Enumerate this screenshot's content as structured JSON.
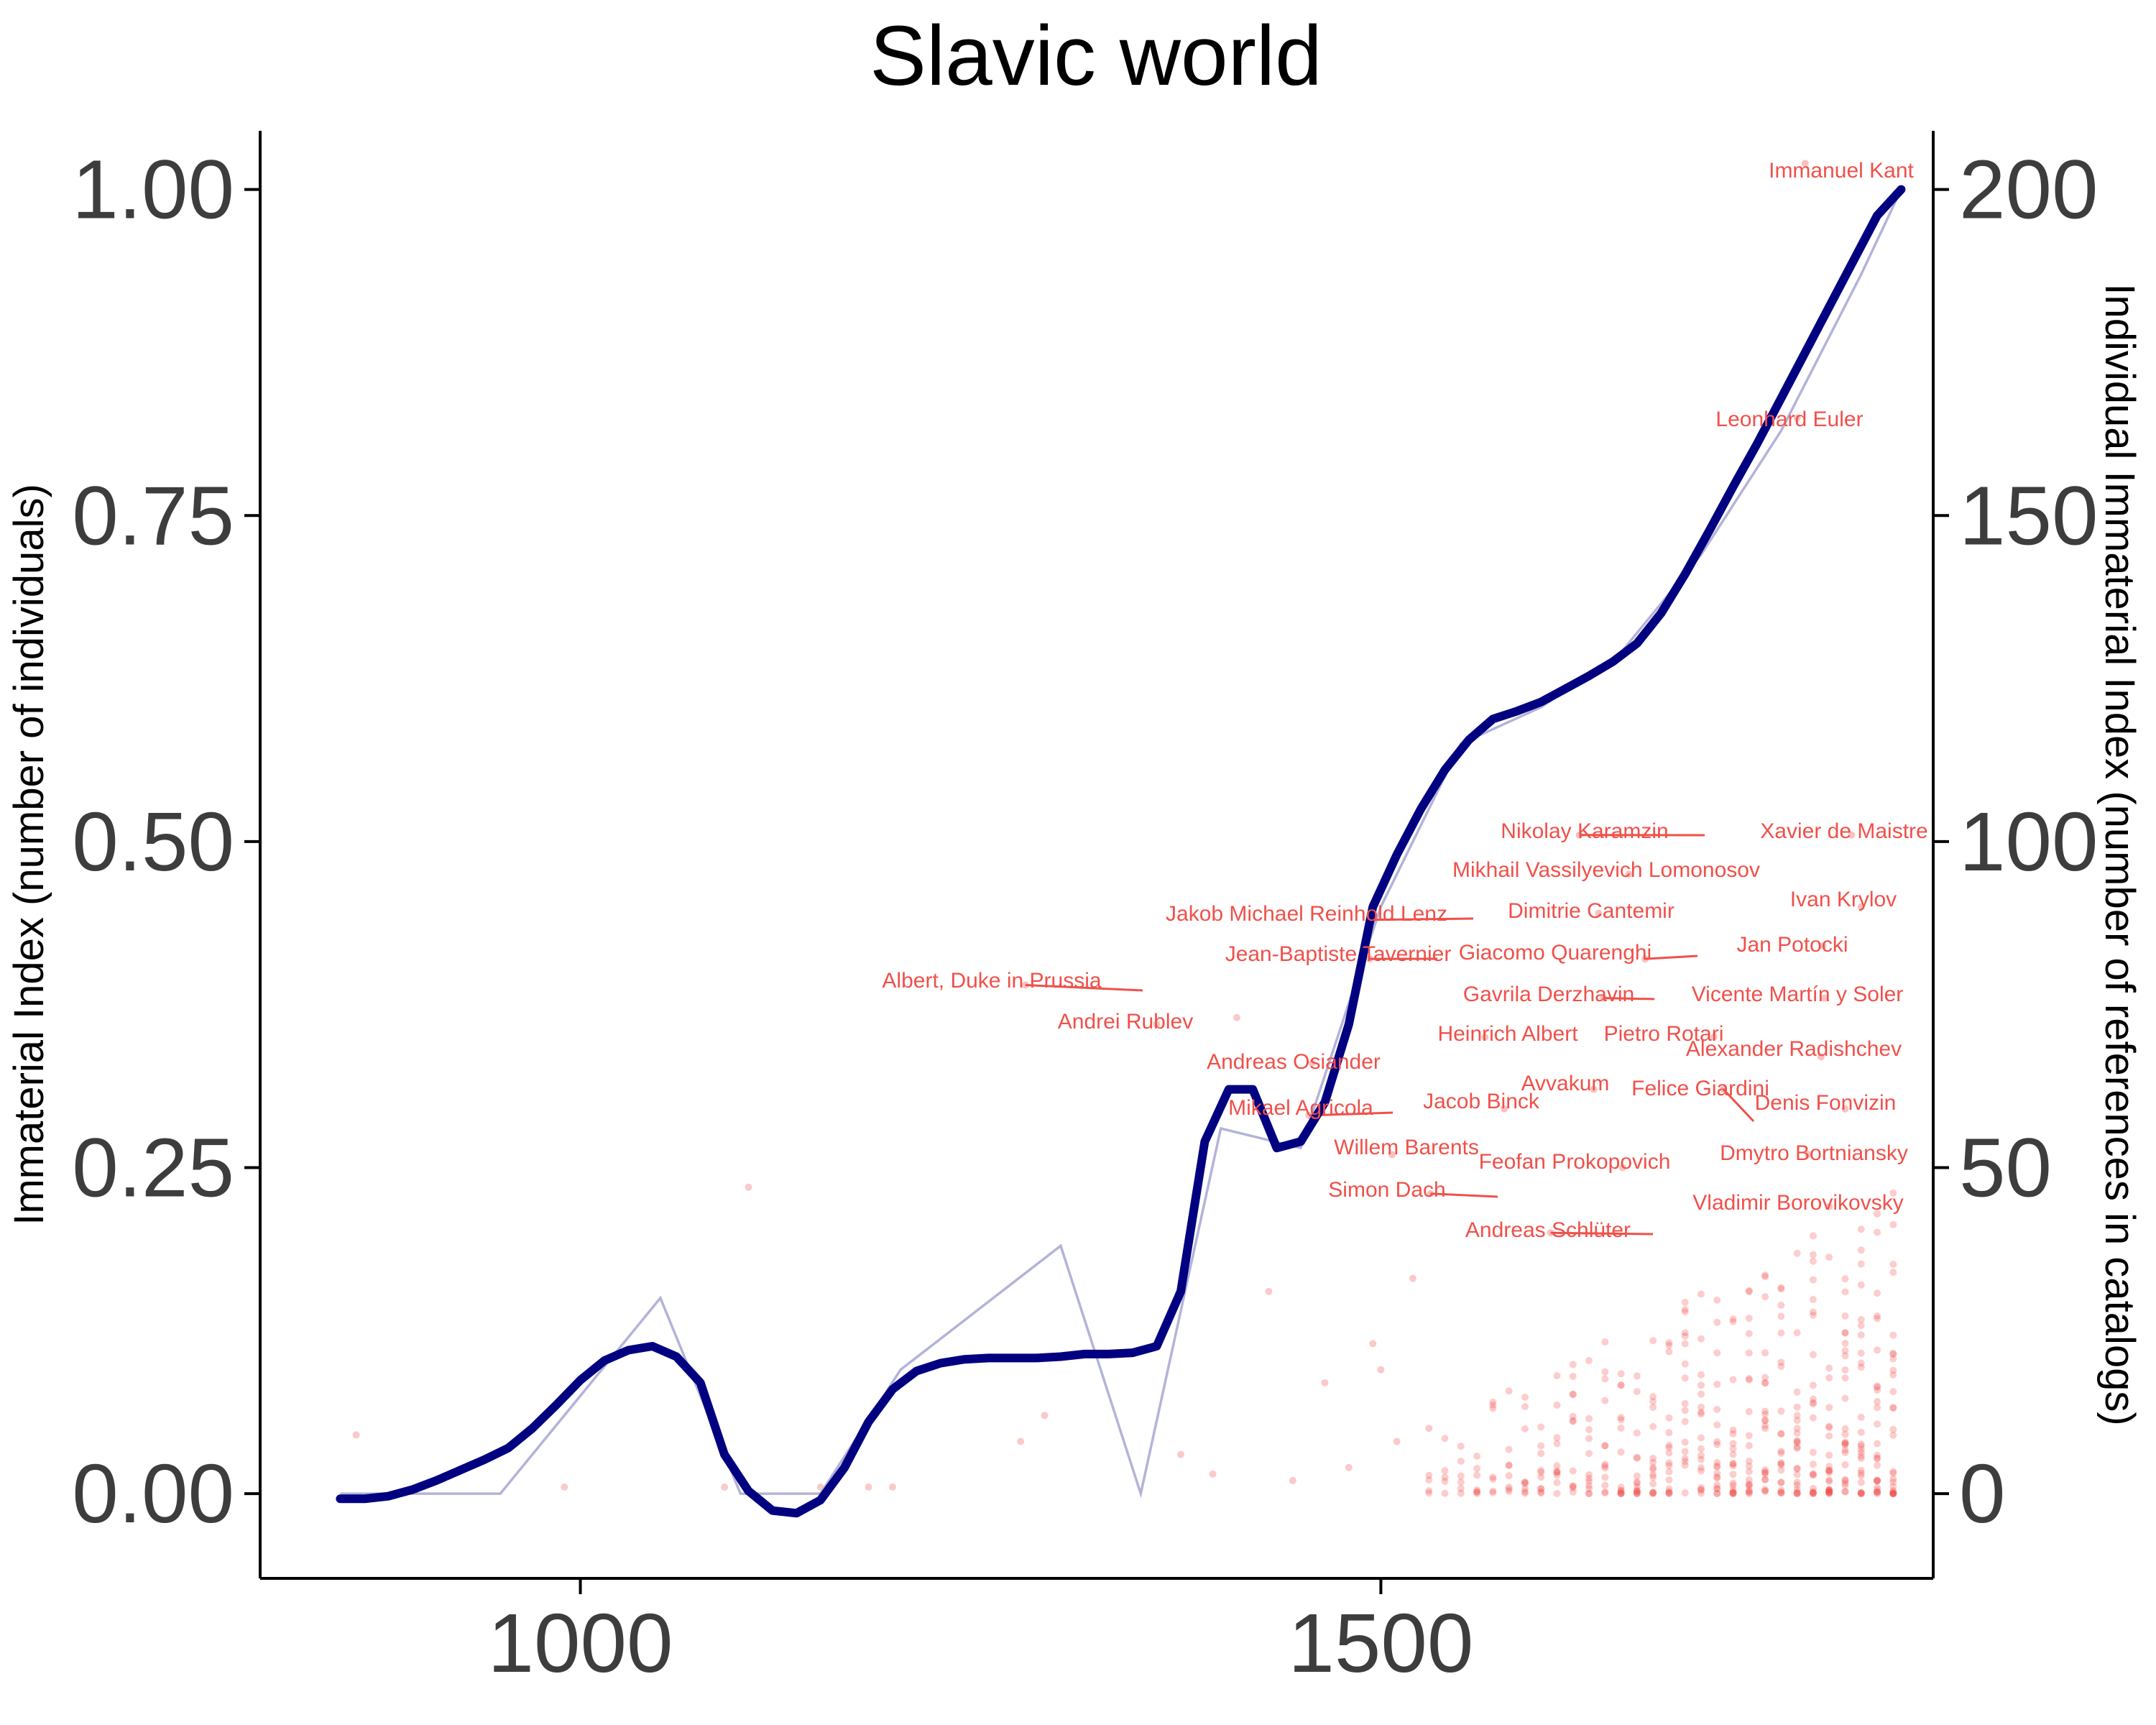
{
  "colors": {
    "index_line": "#000080",
    "raw_line": "#b3b3d9",
    "individuals": "#f0504a"
  },
  "chart_data": {
    "type": "line",
    "title": "Slavic world",
    "xlabel": "",
    "ylabel": "Immaterial Index (number of individuals)",
    "y2label": "Individual Immaterial Index (number of references in catalogs)",
    "xlim": [
      800,
      1845
    ],
    "ylim": [
      -0.065,
      1.045
    ],
    "y2lim": [
      -13,
      209
    ],
    "x_ticks": [
      "1000",
      "1500"
    ],
    "y_ticks": [
      "0.00",
      "0.25",
      "0.50",
      "0.75",
      "1.00"
    ],
    "y2_ticks": [
      "0",
      "50",
      "100",
      "150",
      "200"
    ],
    "grid": false,
    "series": [
      {
        "role": "smoothed",
        "x": [
          850,
          865,
          880,
          895,
          910,
          925,
          940,
          955,
          970,
          985,
          1000,
          1015,
          1030,
          1045,
          1060,
          1075,
          1090,
          1105,
          1120,
          1135,
          1150,
          1165,
          1180,
          1195,
          1210,
          1225,
          1240,
          1255,
          1270,
          1285,
          1300,
          1315,
          1330,
          1345,
          1360,
          1375,
          1390,
          1405,
          1420,
          1435,
          1450,
          1465,
          1480,
          1495,
          1510,
          1525,
          1540,
          1555,
          1570,
          1585,
          1600,
          1615,
          1630,
          1645,
          1660,
          1675,
          1690,
          1705,
          1720,
          1735,
          1750,
          1765,
          1780,
          1795,
          1810,
          1825
        ],
        "y": [
          -0.004,
          -0.004,
          -0.002,
          0.003,
          0.01,
          0.018,
          0.026,
          0.035,
          0.05,
          0.068,
          0.087,
          0.102,
          0.11,
          0.113,
          0.105,
          0.085,
          0.03,
          0.002,
          -0.013,
          -0.015,
          -0.005,
          0.02,
          0.055,
          0.08,
          0.094,
          0.1,
          0.103,
          0.104,
          0.104,
          0.104,
          0.105,
          0.107,
          0.107,
          0.108,
          0.113,
          0.155,
          0.27,
          0.31,
          0.31,
          0.265,
          0.27,
          0.3,
          0.36,
          0.45,
          0.49,
          0.525,
          0.555,
          0.578,
          0.594,
          0.6,
          0.607,
          0.617,
          0.627,
          0.638,
          0.652,
          0.675,
          0.705,
          0.738,
          0.772,
          0.805,
          0.84,
          0.875,
          0.91,
          0.945,
          0.98,
          1.0
        ]
      },
      {
        "role": "raw",
        "x": [
          850,
          950,
          1050,
          1100,
          1150,
          1200,
          1300,
          1350,
          1400,
          1450,
          1500,
          1550,
          1600,
          1650,
          1700,
          1750,
          1800,
          1825
        ],
        "y": [
          0,
          0,
          0.15,
          0,
          0,
          0.095,
          0.19,
          0,
          0.28,
          0.265,
          0.45,
          0.575,
          0.603,
          0.645,
          0.72,
          0.815,
          0.935,
          1.0
        ]
      }
    ],
    "annotations": [
      {
        "text": "Immanuel Kant",
        "x": 1765,
        "y2": 204
      },
      {
        "text": "Leonhard Euler",
        "x": 1760,
        "y2": 165
      },
      {
        "text": "Nikolay Karamzin",
        "x": 1624,
        "y2": 101
      },
      {
        "text": "Xavier de Maistre",
        "x": 1794,
        "y2": 101
      },
      {
        "text": "Mikhail Vassilyevich Lomonosov",
        "x": 1655,
        "y2": 95
      },
      {
        "text": "Ivan Krylov",
        "x": 1800,
        "y2": 90
      },
      {
        "text": "Jakob Michael Reinhold Lenz",
        "x": 1495,
        "y2": 88
      },
      {
        "text": "Dimitrie Cantemir",
        "x": 1636,
        "y2": 89
      },
      {
        "text": "Jan Potocki",
        "x": 1776,
        "y2": 84
      },
      {
        "text": "Jean-Baptiste Tavernier",
        "x": 1493,
        "y2": 82
      },
      {
        "text": "Giacomo Quarenghi",
        "x": 1665,
        "y2": 82
      },
      {
        "text": "Albert, Duke in Prussia",
        "x": 1278,
        "y2": 78
      },
      {
        "text": "Gavrila Derzhavin",
        "x": 1639,
        "y2": 76
      },
      {
        "text": "Vicente Martín y Soler",
        "x": 1777,
        "y2": 76
      },
      {
        "text": "Andrei Rublev",
        "x": 1360,
        "y2": 72
      },
      {
        "text": "Heinrich Albert",
        "x": 1565,
        "y2": 70
      },
      {
        "text": "Pietro Rotari",
        "x": 1708,
        "y2": 70
      },
      {
        "text": "Alexander Radishchev",
        "x": 1775,
        "y2": 67
      },
      {
        "text": "Andreas Osiander",
        "x": 1457,
        "y2": 66
      },
      {
        "text": "Avvakum",
        "x": 1633,
        "y2": 62
      },
      {
        "text": "Felice Giardini",
        "x": 1714,
        "y2": 62
      },
      {
        "text": "Jacob Binck",
        "x": 1577,
        "y2": 59
      },
      {
        "text": "Denis Fonvizin",
        "x": 1790,
        "y2": 59
      },
      {
        "text": "Mikael Agricola",
        "x": 1455,
        "y2": 58
      },
      {
        "text": "Willem Barents",
        "x": 1507,
        "y2": 52
      },
      {
        "text": "Dmytro Bortniansky",
        "x": 1767,
        "y2": 52
      },
      {
        "text": "Feofan Prokopovich",
        "x": 1651,
        "y2": 50
      },
      {
        "text": "Simon Dach",
        "x": 1531,
        "y2": 46
      },
      {
        "text": "Vladimir Borovikovsky",
        "x": 1780,
        "y2": 44
      },
      {
        "text": "Andreas Schlüter",
        "x": 1606,
        "y2": 40
      }
    ],
    "legend": "none"
  }
}
